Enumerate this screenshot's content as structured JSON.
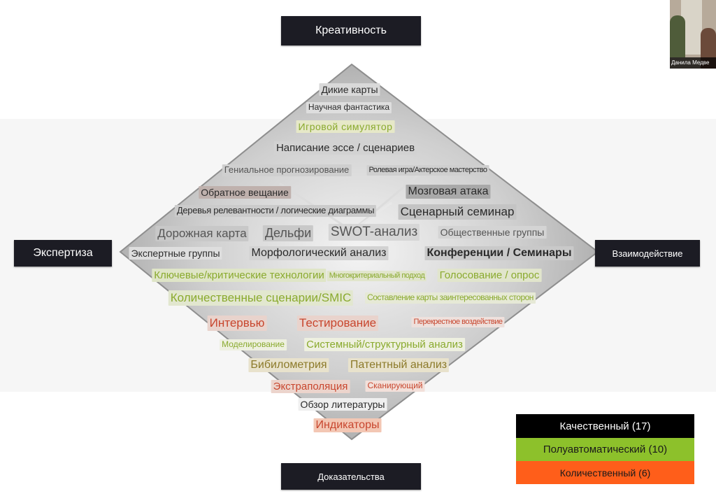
{
  "axes": {
    "top": "Креативность",
    "left": "Экспертиза",
    "right": "Взаимодействие",
    "bottom": "Доказательства"
  },
  "terms": [
    "Дикие карты",
    "Научная фантастика",
    "Игровой симулятор",
    "Написание эссе / сценариев",
    "Гениальное прогнозирование",
    "Ролевая игра/Актерское мастерство",
    "Обратное вещание",
    "Мозговая атака",
    "Деревья релевантности / логические диаграммы",
    "Сценарный семинар",
    "Дорожная карта",
    "Дельфи",
    "SWOT-анализ",
    "Общественные группы",
    "Экспертные группы",
    "Морфологический анализ",
    "Конференции / Семинары",
    "Ключевые/критические технологии",
    "Многокритериальный подход",
    "Голосование / опрос",
    "Количественные сценарии/SMIC",
    "Составление карты заинтересованных сторон",
    "Интервью",
    "Тестирование",
    "Перекрестное воздействие",
    "Моделирование",
    "Системный/структурный анализ",
    "Бибилометрия",
    "Патентный анализ",
    "Экстраполяция",
    "Сканирующий",
    "Обзор литературы",
    "Индикаторы"
  ],
  "legend": [
    {
      "label": "Качественный (17)",
      "color": "#000000",
      "text_color": "#ffffff"
    },
    {
      "label": "Полуавтоматический (10)",
      "color": "#8dc12b",
      "text_color": "#1a1a1a"
    },
    {
      "label": "Количественный (6)",
      "color": "#ff5e1a",
      "text_color": "#1a1a1a"
    }
  ],
  "video": {
    "name": "Данила Медве"
  },
  "colors": {
    "axis_box": "#1c1c24",
    "green_text": "#8aaa2e",
    "olive_text": "#8c7a2a",
    "red_text": "#c8462e"
  }
}
